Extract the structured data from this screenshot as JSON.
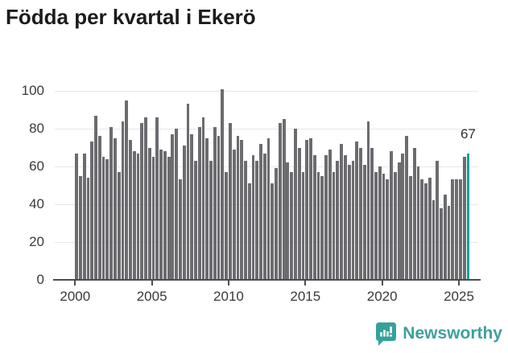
{
  "title": "Födda per kvartal i Ekerö",
  "chart_data": {
    "type": "bar",
    "title": "Födda per kvartal i Ekerö",
    "x_start": "2000-Q1",
    "x_end": "2025-Q3",
    "x_tick_labels": [
      "2000",
      "2005",
      "2010",
      "2015",
      "2020",
      "2025"
    ],
    "y_tick_labels": [
      "0",
      "20",
      "40",
      "60",
      "80",
      "100"
    ],
    "ylim": [
      0,
      100
    ],
    "grid": "horizontal",
    "legend": "none",
    "bar_color": "#6b6b70",
    "highlight_color": "#00a39c",
    "values": [
      67,
      55,
      67,
      54,
      73,
      87,
      76,
      65,
      64,
      81,
      75,
      57,
      84,
      95,
      74,
      68,
      67,
      83,
      86,
      70,
      65,
      86,
      69,
      68,
      65,
      77,
      80,
      53,
      71,
      93,
      77,
      63,
      81,
      86,
      75,
      63,
      81,
      76,
      101,
      57,
      83,
      69,
      76,
      74,
      63,
      51,
      66,
      63,
      72,
      67,
      75,
      51,
      59,
      83,
      85,
      62,
      57,
      80,
      70,
      57,
      74,
      75,
      66,
      57,
      55,
      66,
      69,
      57,
      63,
      72,
      66,
      61,
      63,
      73,
      70,
      61,
      84,
      70,
      57,
      60,
      56,
      53,
      68,
      57,
      62,
      67,
      76,
      55,
      70,
      60,
      53,
      51,
      54,
      42,
      63,
      38,
      45,
      39,
      53,
      53,
      53,
      65,
      67
    ],
    "highlight": {
      "index": 102,
      "value": 67,
      "label": "67"
    }
  },
  "logo": {
    "text": "Newsworthy",
    "icon": "newsworthy-speech-bubble-barchart-icon",
    "color": "#3ea09b",
    "icon_color": "#35a19a"
  }
}
